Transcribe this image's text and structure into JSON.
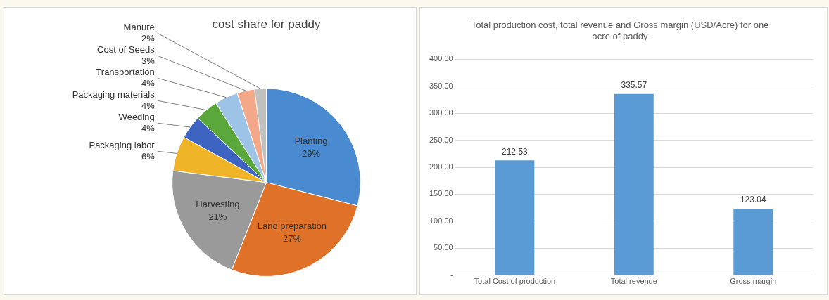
{
  "chart_data": [
    {
      "type": "pie",
      "title": "cost share for paddy",
      "categories": [
        "Planting",
        "Land preparation",
        "Harvesting",
        "Packaging labor",
        "Weeding",
        "Packaging materials",
        "Transportation",
        "Cost of Seeds",
        "Manure"
      ],
      "values": [
        29,
        27,
        21,
        6,
        4,
        4,
        4,
        3,
        2
      ],
      "value_labels": [
        "29%",
        "27%",
        "21%",
        "6%",
        "4%",
        "4%",
        "4%",
        "3%",
        "2%"
      ],
      "colors": [
        "#4a8ad0",
        "#e07128",
        "#9a9a9a",
        "#f0b428",
        "#3c64c0",
        "#5aa83c",
        "#9dc3e6",
        "#f4a88a",
        "#c0c0c0"
      ]
    },
    {
      "type": "bar",
      "title": "Total production cost, total revenue and Gross margin (USD/Acre) for one acre of paddy",
      "categories": [
        "Total Cost of production",
        "Total revenue",
        "Gross margin"
      ],
      "values": [
        212.53,
        335.57,
        123.04
      ],
      "color": "#5b9bd5",
      "data_labels": true,
      "grid": "y",
      "ylim": [
        0,
        400
      ],
      "yticks": [
        {
          "value": 0,
          "label": "-"
        },
        {
          "value": 50,
          "label": "50.00"
        },
        {
          "value": 100,
          "label": "100.00"
        },
        {
          "value": 150,
          "label": "150.00"
        },
        {
          "value": 200,
          "label": "200.00"
        },
        {
          "value": 250,
          "label": "250.00"
        },
        {
          "value": 300,
          "label": "300.00"
        },
        {
          "value": 350,
          "label": "350.00"
        },
        {
          "value": 400,
          "label": "400.00"
        }
      ]
    }
  ]
}
